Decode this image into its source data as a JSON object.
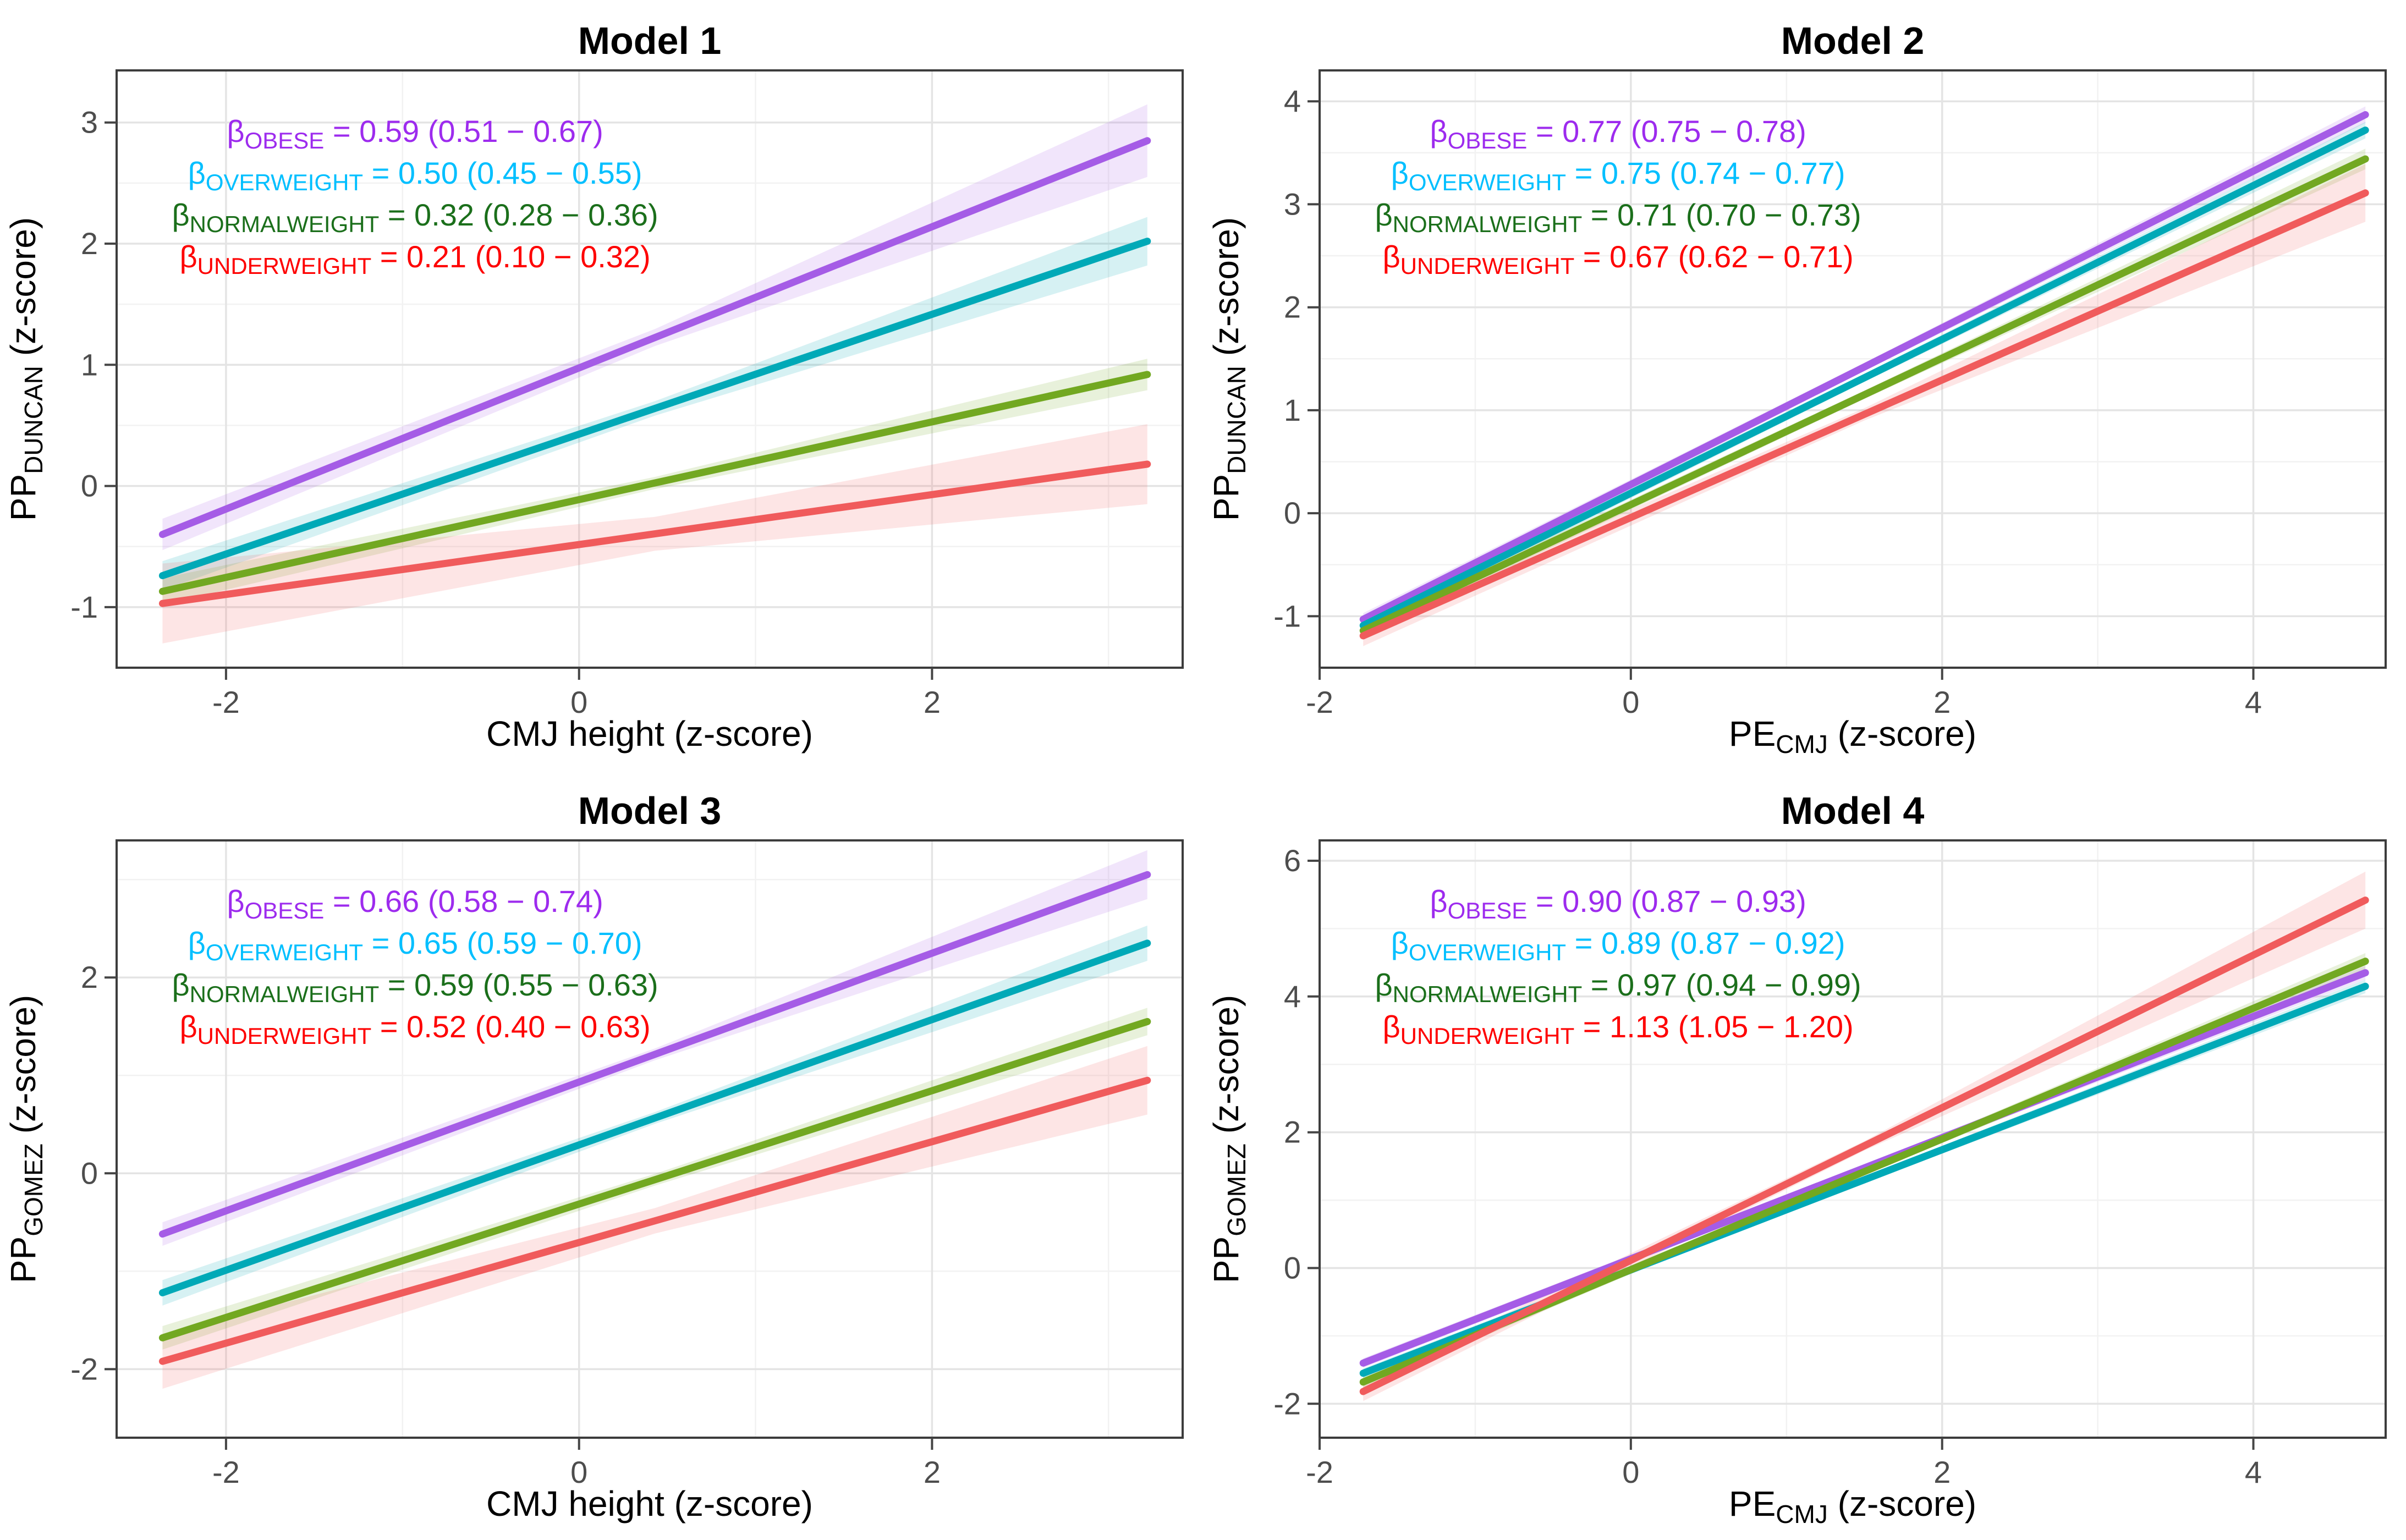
{
  "figure_background": "#ffffff",
  "style": {
    "grid_major_color": "#e4e4e4",
    "grid_minor_color": "#f2f2f2",
    "panel_border_color": "#3c3c3c",
    "tick_color": "#454545",
    "tick_label_color": "#4d4d4d",
    "axis_label_color": "#000000",
    "title_color": "#000000",
    "band_opacity": 0.16,
    "line_width": 13
  },
  "groups": [
    {
      "id": "obese",
      "label": "OBESE",
      "line_color": "#a55ce6",
      "text_color": "#9d2bee"
    },
    {
      "id": "overweight",
      "label": "OVERWEIGHT",
      "line_color": "#00a9b7",
      "text_color": "#00bfff"
    },
    {
      "id": "normalweight",
      "label": "NORMALWEIGHT",
      "line_color": "#72a821",
      "text_color": "#1b6f1b"
    },
    {
      "id": "underweight",
      "label": "UNDERWEIGHT",
      "line_color": "#f05b5c",
      "text_color": "#fe0000"
    }
  ],
  "chart_data": [
    {
      "type": "line",
      "title": "Model 1",
      "xlabel": {
        "main": "CMJ height",
        "sub": "",
        "suffix": "(z-score)"
      },
      "ylabel": {
        "main": "PP",
        "sub": "DUNCAN",
        "suffix": "(z-score)"
      },
      "xlim": [
        -2.62,
        3.42
      ],
      "ylim": [
        -1.5,
        3.43
      ],
      "xticks": [
        -2,
        0,
        2
      ],
      "yticks": [
        -1,
        0,
        1,
        2,
        3
      ],
      "xminor": [
        -1,
        1,
        3
      ],
      "yminor": [
        -0.5,
        0.5,
        1.5,
        2.5
      ],
      "series": [
        {
          "group": 0,
          "beta": "0.59",
          "ci": "(0.51 − 0.67)",
          "x": [
            -2.36,
            3.22
          ],
          "y": [
            -0.4,
            2.85
          ],
          "band": [
            0.13,
            0.07,
            0.3
          ]
        },
        {
          "group": 1,
          "beta": "0.50",
          "ci": "(0.45 − 0.55)",
          "x": [
            -2.36,
            3.22
          ],
          "y": [
            -0.74,
            2.02
          ],
          "band": [
            0.12,
            0.06,
            0.2
          ]
        },
        {
          "group": 2,
          "beta": "0.32",
          "ci": "(0.28 − 0.36)",
          "x": [
            -2.36,
            3.22
          ],
          "y": [
            -0.87,
            0.92
          ],
          "band": [
            0.11,
            0.05,
            0.13
          ]
        },
        {
          "group": 3,
          "beta": "0.21",
          "ci": "(0.10 − 0.32)",
          "x": [
            -2.36,
            3.22
          ],
          "y": [
            -0.97,
            0.18
          ],
          "band": [
            0.33,
            0.14,
            0.33
          ]
        }
      ]
    },
    {
      "type": "line",
      "title": "Model 2",
      "xlabel": {
        "main": "PE",
        "sub": "CMJ",
        "suffix": "(z-score)"
      },
      "ylabel": {
        "main": "PP",
        "sub": "DUNCAN",
        "suffix": "(z-score)"
      },
      "xlim": [
        -2.0,
        4.85
      ],
      "ylim": [
        -1.5,
        4.3
      ],
      "xticks": [
        -2,
        0,
        2,
        4
      ],
      "yticks": [
        -1,
        0,
        1,
        2,
        3,
        4
      ],
      "xminor": [
        -1,
        1,
        3
      ],
      "yminor": [
        -0.5,
        0.5,
        1.5,
        2.5,
        3.5
      ],
      "series": [
        {
          "group": 0,
          "beta": "0.77",
          "ci": "(0.75 − 0.78)",
          "x": [
            -1.72,
            4.72
          ],
          "y": [
            -1.03,
            3.87
          ],
          "band": [
            0.06,
            0.04,
            0.08
          ]
        },
        {
          "group": 1,
          "beta": "0.75",
          "ci": "(0.74 − 0.77)",
          "x": [
            -1.72,
            4.72
          ],
          "y": [
            -1.09,
            3.72
          ],
          "band": [
            0.06,
            0.04,
            0.08
          ]
        },
        {
          "group": 2,
          "beta": "0.71",
          "ci": "(0.70 − 0.73)",
          "x": [
            -1.72,
            4.72
          ],
          "y": [
            -1.14,
            3.44
          ],
          "band": [
            0.06,
            0.04,
            0.1
          ]
        },
        {
          "group": 3,
          "beta": "0.67",
          "ci": "(0.62 − 0.71)",
          "x": [
            -1.72,
            4.72
          ],
          "y": [
            -1.19,
            3.11
          ],
          "band": [
            0.1,
            0.06,
            0.28
          ]
        }
      ]
    },
    {
      "type": "line",
      "title": "Model 3",
      "xlabel": {
        "main": "CMJ height",
        "sub": "",
        "suffix": "(z-score)"
      },
      "ylabel": {
        "main": "PP",
        "sub": "GOMEZ",
        "suffix": "(z-score)"
      },
      "xlim": [
        -2.62,
        3.42
      ],
      "ylim": [
        -2.7,
        3.4
      ],
      "xticks": [
        -2,
        0,
        2
      ],
      "yticks": [
        -2,
        0,
        2
      ],
      "xminor": [
        -1,
        1,
        3
      ],
      "yminor": [
        -1,
        1,
        3
      ],
      "series": [
        {
          "group": 0,
          "beta": "0.66",
          "ci": "(0.58 − 0.74)",
          "x": [
            -2.36,
            3.22
          ],
          "y": [
            -0.62,
            3.05
          ],
          "band": [
            0.12,
            0.06,
            0.25
          ]
        },
        {
          "group": 1,
          "beta": "0.65",
          "ci": "(0.59 − 0.70)",
          "x": [
            -2.36,
            3.22
          ],
          "y": [
            -1.22,
            2.35
          ],
          "band": [
            0.13,
            0.06,
            0.18
          ]
        },
        {
          "group": 2,
          "beta": "0.59",
          "ci": "(0.55 − 0.63)",
          "x": [
            -2.36,
            3.22
          ],
          "y": [
            -1.68,
            1.55
          ],
          "band": [
            0.12,
            0.06,
            0.14
          ]
        },
        {
          "group": 3,
          "beta": "0.52",
          "ci": "(0.40 − 0.63)",
          "x": [
            -2.36,
            3.22
          ],
          "y": [
            -1.92,
            0.95
          ],
          "band": [
            0.28,
            0.13,
            0.35
          ]
        }
      ]
    },
    {
      "type": "line",
      "title": "Model 4",
      "xlabel": {
        "main": "PE",
        "sub": "CMJ",
        "suffix": "(z-score)"
      },
      "ylabel": {
        "main": "PP",
        "sub": "GOMEZ",
        "suffix": "(z-score)"
      },
      "xlim": [
        -2.0,
        4.85
      ],
      "ylim": [
        -2.5,
        6.3
      ],
      "xticks": [
        -2,
        0,
        2,
        4
      ],
      "yticks": [
        -2,
        0,
        2,
        4,
        6
      ],
      "xminor": [
        -1,
        1,
        3
      ],
      "yminor": [
        -1,
        1,
        3,
        5
      ],
      "series": [
        {
          "group": 0,
          "beta": "0.90",
          "ci": "(0.87 − 0.93)",
          "x": [
            -1.72,
            4.72
          ],
          "y": [
            -1.4,
            4.35
          ],
          "band": [
            0.07,
            0.05,
            0.1
          ]
        },
        {
          "group": 1,
          "beta": "0.89",
          "ci": "(0.87 − 0.92)",
          "x": [
            -1.72,
            4.72
          ],
          "y": [
            -1.55,
            4.15
          ],
          "band": [
            0.07,
            0.05,
            0.1
          ]
        },
        {
          "group": 2,
          "beta": "0.97",
          "ci": "(0.94 − 0.99)",
          "x": [
            -1.72,
            4.72
          ],
          "y": [
            -1.68,
            4.52
          ],
          "band": [
            0.08,
            0.05,
            0.12
          ]
        },
        {
          "group": 3,
          "beta": "1.13",
          "ci": "(1.05 − 1.20)",
          "x": [
            -1.72,
            4.72
          ],
          "y": [
            -1.82,
            5.42
          ],
          "band": [
            0.14,
            0.07,
            0.42
          ]
        }
      ]
    }
  ]
}
